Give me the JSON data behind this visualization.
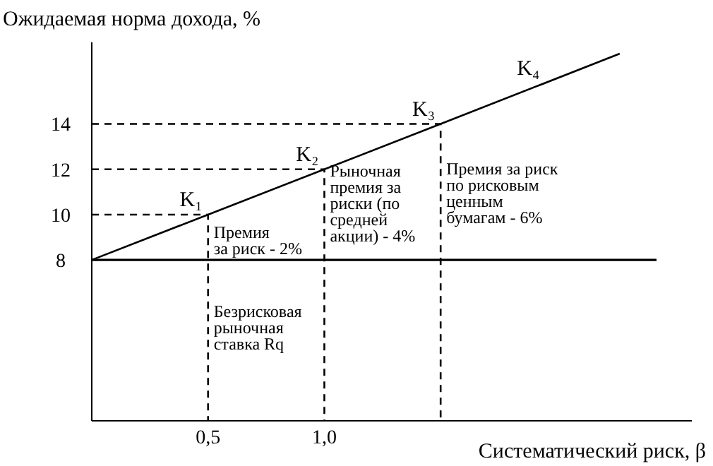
{
  "chart_data": {
    "type": "line",
    "xlabel": "Систематический риск, β",
    "ylabel": "Ожидаемая норма дохода, %",
    "xlim": [
      0,
      2.58
    ],
    "ylim": [
      0.9,
      17.6
    ],
    "xticks": [
      {
        "value": 0.5,
        "label": "0,5"
      },
      {
        "value": 1,
        "label": "1,0"
      }
    ],
    "yticks": [
      8,
      10,
      12,
      14
    ],
    "grid": false,
    "marker": "none",
    "series": [
      {
        "color": "#000000",
        "x": [
          0,
          0.5,
          1,
          1.5,
          2.27
        ],
        "values": [
          8,
          10,
          12,
          14,
          17.1
        ],
        "line_style": "solid"
      },
      {
        "color": "#000000",
        "x": [
          0,
          0.5,
          0.5
        ],
        "values": [
          10,
          10,
          0.9
        ],
        "line_style": "dashed"
      },
      {
        "color": "#000000",
        "x": [
          0,
          1,
          1
        ],
        "values": [
          12,
          12,
          0.9
        ],
        "line_style": "dashed"
      },
      {
        "color": "#000000",
        "x": [
          0,
          1.5,
          1.5
        ],
        "values": [
          14,
          14,
          0.9
        ],
        "line_style": "dashed"
      }
    ],
    "ref_lines": [
      {
        "axis": "y",
        "value": 8,
        "color": "#000000",
        "line_style": "solid"
      }
    ],
    "annotations": [
      {
        "text": "K₁",
        "x": 0.5,
        "y": 10
      },
      {
        "text": "K₂",
        "x": 1,
        "y": 12
      },
      {
        "text": "K₃",
        "x": 1.5,
        "y": 14
      },
      {
        "text": "K₄",
        "x": 1.95,
        "y": 15.8
      },
      {
        "text": "Премия\nза риск - 2%",
        "x": 0.5,
        "y": 9.6
      },
      {
        "text": "Безрисковая\nрыночная\nставка Rq",
        "x": 0.5,
        "y": 6.1
      },
      {
        "text": "Рыночная\nпремия за\nриски (по\nсредней\nакции) - 4%",
        "x": 1,
        "y": 12.3
      },
      {
        "text": "Премия за риск\nпо рисковым\nценным\nбумагам - 6%",
        "x": 1.5,
        "y": 12.4
      }
    ]
  }
}
